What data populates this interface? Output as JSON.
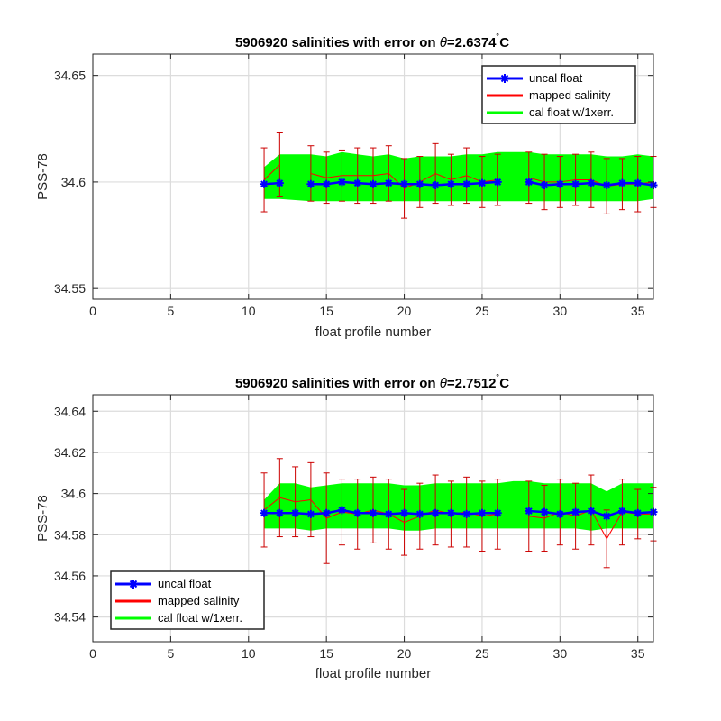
{
  "figure": {
    "background": "#ffffff"
  },
  "chart_data": [
    {
      "type": "line",
      "title": "5906920 salinities with error on θ=2.6374˚C",
      "title_parts": {
        "prefix": "5906920 salinities with error on ",
        "theta": "θ",
        "value": "=2.6374",
        "deg": "˚",
        "unit": "C"
      },
      "xlabel": "float profile number",
      "ylabel": "PSS-78",
      "xlim": [
        0,
        36
      ],
      "ylim": [
        34.545,
        34.66
      ],
      "xticks": [
        0,
        5,
        10,
        15,
        20,
        25,
        30,
        35
      ],
      "xtick_labels": [
        "0",
        "5",
        "10",
        "15",
        "20",
        "25",
        "30",
        "35"
      ],
      "yticks": [
        34.55,
        34.6,
        34.65
      ],
      "ytick_labels": [
        "34.55",
        "34.6",
        "34.65"
      ],
      "grid": true,
      "legend": "top-right",
      "legend_entries": [
        "uncal float",
        "mapped salinity",
        "cal float w/1xerr."
      ],
      "colors": {
        "uncal": "#0000ff",
        "mapped": "#ff0000",
        "errbar": "#cc0000",
        "band": "#00ff00"
      },
      "series": [
        {
          "name": "uncal float",
          "x": [
            11,
            12,
            14,
            15,
            16,
            17,
            18,
            19,
            20,
            21,
            22,
            23,
            24,
            25,
            26,
            28,
            29,
            30,
            31,
            32,
            33,
            34,
            35,
            36
          ],
          "y": [
            34.599,
            34.5995,
            34.599,
            34.599,
            34.6,
            34.5995,
            34.599,
            34.5995,
            34.599,
            34.599,
            34.5985,
            34.599,
            34.599,
            34.5995,
            34.6,
            34.6,
            34.5985,
            34.599,
            34.599,
            34.5995,
            34.5985,
            34.5995,
            34.5995,
            34.5985
          ],
          "segments": [
            [
              11,
              12
            ],
            [
              14,
              26
            ],
            [
              28,
              36
            ]
          ]
        },
        {
          "name": "mapped salinity",
          "x": [
            11,
            12,
            14,
            15,
            16,
            17,
            18,
            19,
            20,
            21,
            22,
            23,
            24,
            25,
            26,
            28,
            29,
            30,
            31,
            32,
            33,
            34,
            35,
            36
          ],
          "y": [
            34.601,
            34.608,
            34.604,
            34.602,
            34.603,
            34.603,
            34.603,
            34.604,
            34.597,
            34.6,
            34.604,
            34.601,
            34.603,
            34.6,
            34.601,
            34.602,
            34.6,
            34.6,
            34.601,
            34.601,
            34.598,
            34.599,
            34.599,
            34.6
          ],
          "err": [
            0.015,
            0.015,
            0.013,
            0.012,
            0.012,
            0.013,
            0.013,
            0.013,
            0.014,
            0.012,
            0.014,
            0.012,
            0.013,
            0.012,
            0.012,
            0.012,
            0.013,
            0.012,
            0.012,
            0.013,
            0.013,
            0.012,
            0.013,
            0.012
          ]
        },
        {
          "name": "cal float w/1xerr.",
          "x": [
            11,
            12,
            14,
            15,
            16,
            17,
            18,
            19,
            20,
            21,
            22,
            23,
            24,
            25,
            26,
            27,
            28,
            29,
            30,
            31,
            32,
            33,
            34,
            35,
            36
          ],
          "lower": [
            34.592,
            34.592,
            34.591,
            34.591,
            34.591,
            34.591,
            34.591,
            34.591,
            34.591,
            34.591,
            34.591,
            34.591,
            34.591,
            34.591,
            34.591,
            34.591,
            34.591,
            34.591,
            34.591,
            34.591,
            34.591,
            34.591,
            34.591,
            34.591,
            34.592
          ],
          "upper": [
            34.607,
            34.613,
            34.613,
            34.612,
            34.614,
            34.613,
            34.612,
            34.613,
            34.611,
            34.612,
            34.612,
            34.612,
            34.613,
            34.613,
            34.614,
            34.614,
            34.614,
            34.613,
            34.613,
            34.613,
            34.613,
            34.612,
            34.612,
            34.613,
            34.612
          ]
        }
      ]
    },
    {
      "type": "line",
      "title": "5906920 salinities with error on θ=2.7512˚C",
      "title_parts": {
        "prefix": "5906920 salinities with error on ",
        "theta": "θ",
        "value": "=2.7512",
        "deg": "˚",
        "unit": "C"
      },
      "xlabel": "float profile number",
      "ylabel": "PSS-78",
      "xlim": [
        0,
        36
      ],
      "ylim": [
        34.528,
        34.648
      ],
      "xticks": [
        0,
        5,
        10,
        15,
        20,
        25,
        30,
        35
      ],
      "xtick_labels": [
        "0",
        "5",
        "10",
        "15",
        "20",
        "25",
        "30",
        "35"
      ],
      "yticks": [
        34.54,
        34.56,
        34.58,
        34.6,
        34.62,
        34.64
      ],
      "ytick_labels": [
        "34.54",
        "34.56",
        "34.58",
        "34.6",
        "34.62",
        "34.64"
      ],
      "grid": true,
      "legend": "bottom-left",
      "legend_entries": [
        "uncal float",
        "mapped salinity",
        "cal float w/1xerr."
      ],
      "colors": {
        "uncal": "#0000ff",
        "mapped": "#ff0000",
        "errbar": "#cc0000",
        "band": "#00ff00"
      },
      "series": [
        {
          "name": "uncal float",
          "x": [
            11,
            12,
            13,
            14,
            15,
            16,
            17,
            18,
            19,
            20,
            21,
            22,
            23,
            24,
            25,
            26,
            28,
            29,
            30,
            31,
            32,
            33,
            34,
            35,
            36
          ],
          "y": [
            34.5905,
            34.5905,
            34.5905,
            34.59,
            34.5905,
            34.592,
            34.5905,
            34.5905,
            34.59,
            34.5905,
            34.59,
            34.5905,
            34.5905,
            34.59,
            34.5905,
            34.5905,
            34.5915,
            34.591,
            34.59,
            34.591,
            34.5915,
            34.589,
            34.5915,
            34.5905,
            34.591
          ],
          "segments": [
            [
              11,
              26
            ],
            [
              28,
              36
            ]
          ]
        },
        {
          "name": "mapped salinity",
          "x": [
            11,
            12,
            13,
            14,
            15,
            16,
            17,
            18,
            19,
            20,
            21,
            22,
            23,
            24,
            25,
            26,
            28,
            29,
            30,
            31,
            32,
            33,
            34,
            35,
            36
          ],
          "y": [
            34.592,
            34.598,
            34.596,
            34.597,
            34.588,
            34.591,
            34.59,
            34.592,
            34.59,
            34.586,
            34.589,
            34.592,
            34.59,
            34.591,
            34.589,
            34.59,
            34.589,
            34.588,
            34.591,
            34.589,
            34.592,
            34.578,
            34.591,
            34.59,
            34.59
          ],
          "err": [
            0.018,
            0.019,
            0.017,
            0.018,
            0.022,
            0.016,
            0.017,
            0.016,
            0.017,
            0.016,
            0.016,
            0.017,
            0.016,
            0.017,
            0.017,
            0.017,
            0.017,
            0.016,
            0.016,
            0.016,
            0.017,
            0.014,
            0.016,
            0.012,
            0.013
          ]
        },
        {
          "name": "cal float w/1xerr.",
          "x": [
            11,
            12,
            13,
            14,
            15,
            16,
            17,
            18,
            19,
            20,
            21,
            22,
            23,
            24,
            25,
            26,
            27,
            28,
            29,
            30,
            31,
            32,
            33,
            34,
            35,
            36
          ],
          "lower": [
            34.583,
            34.583,
            34.583,
            34.582,
            34.583,
            34.583,
            34.583,
            34.583,
            34.583,
            34.582,
            34.582,
            34.583,
            34.583,
            34.583,
            34.583,
            34.583,
            34.583,
            34.583,
            34.583,
            34.583,
            34.583,
            34.582,
            34.583,
            34.583,
            34.583,
            34.583
          ],
          "upper": [
            34.597,
            34.605,
            34.605,
            34.603,
            34.604,
            34.605,
            34.605,
            34.605,
            34.605,
            34.604,
            34.604,
            34.605,
            34.605,
            34.605,
            34.605,
            34.605,
            34.606,
            34.606,
            34.605,
            34.605,
            34.605,
            34.605,
            34.601,
            34.605,
            34.605,
            34.605
          ]
        }
      ]
    }
  ]
}
